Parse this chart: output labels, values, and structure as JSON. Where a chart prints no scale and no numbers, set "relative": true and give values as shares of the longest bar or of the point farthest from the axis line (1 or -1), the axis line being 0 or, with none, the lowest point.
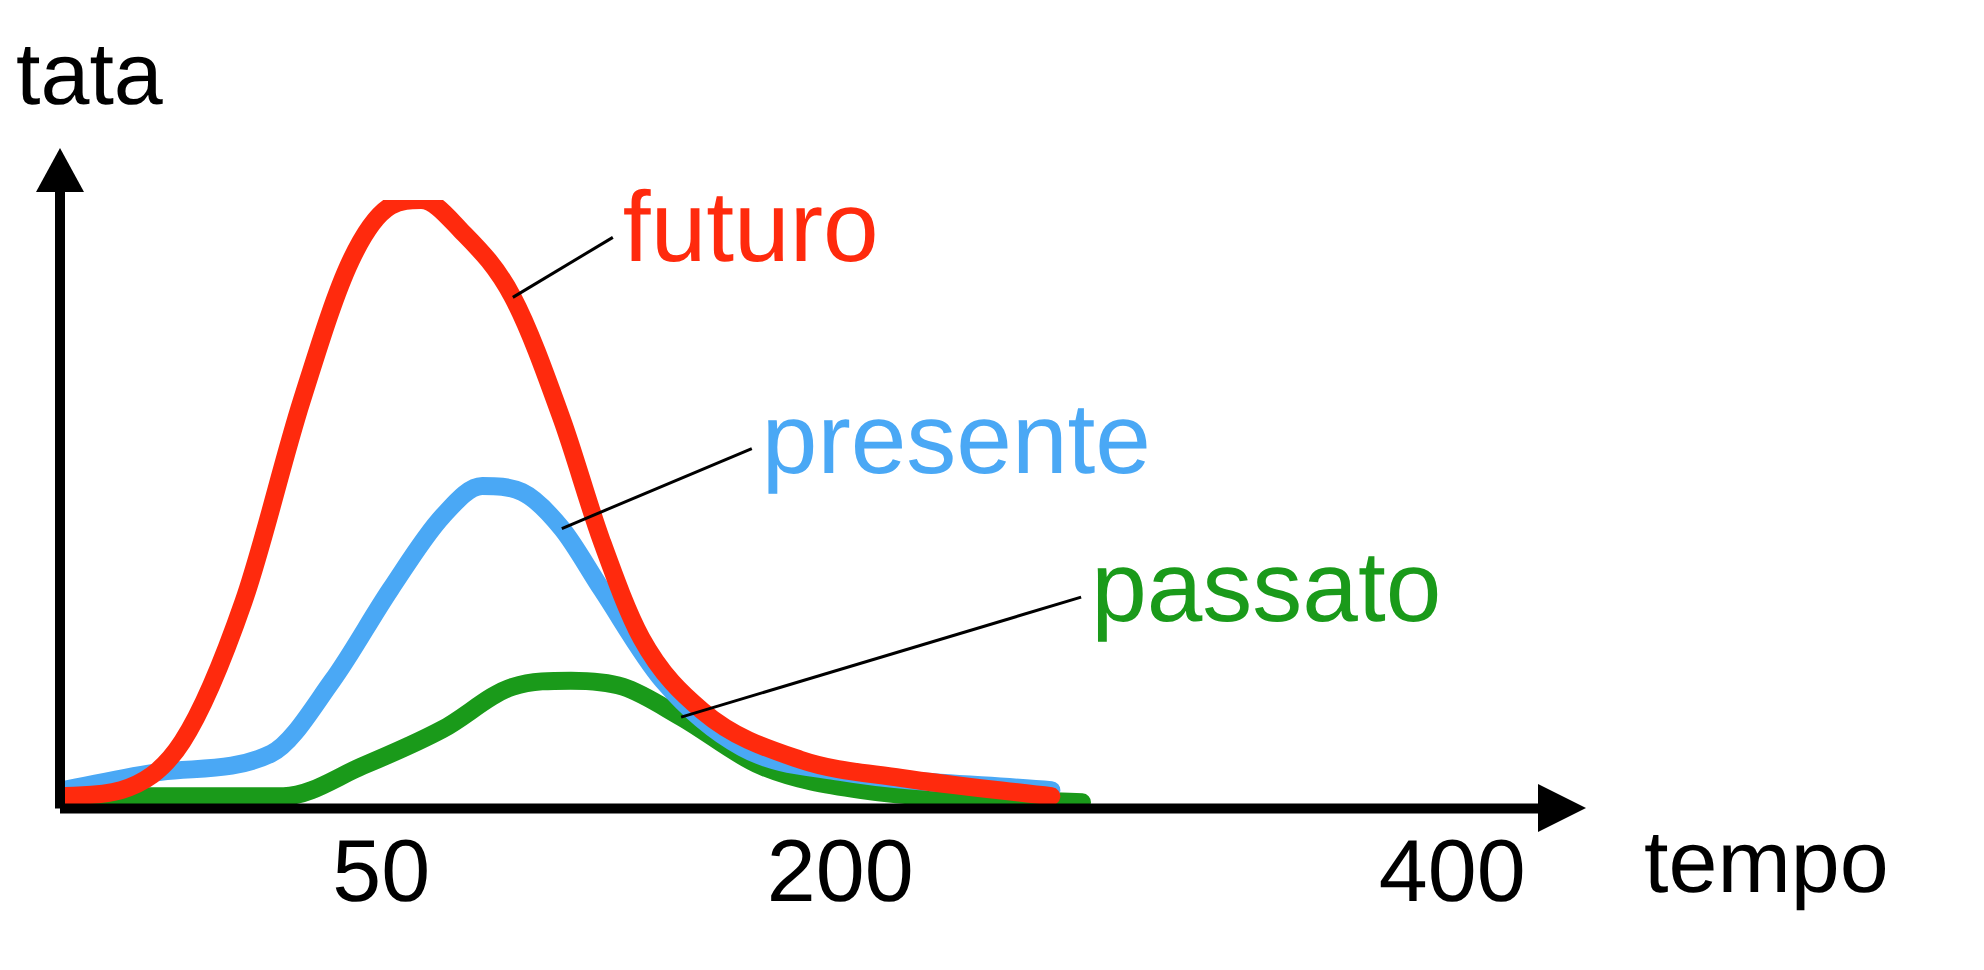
{
  "chart_data": {
    "type": "line",
    "xlabel": "tempo",
    "ylabel": "tata",
    "relative": true,
    "xlim": [
      -55,
      430
    ],
    "xticks": [
      50,
      200,
      400
    ],
    "marker": "none",
    "line_style": "solid",
    "legend": false,
    "grid": false,
    "series": [
      {
        "name": "futuro",
        "color": "#ff2a0d",
        "x": [
          -54,
          -35,
          -15,
          5,
          24,
          40,
          53,
          63,
          76,
          93,
          109,
          122,
          135,
          155,
          187,
          220,
          269
        ],
        "values": [
          0.02,
          0.03,
          0.11,
          0.34,
          0.67,
          0.9,
          0.99,
          1,
          0.95,
          0.84,
          0.64,
          0.44,
          0.28,
          0.16,
          0.08,
          0.05,
          0.02
        ]
      },
      {
        "name": "presente",
        "color": "#4aa8f5",
        "x": [
          -54,
          -22,
          14,
          34,
          53,
          70,
          83,
          96,
          109,
          122,
          142,
          168,
          200,
          269
        ],
        "values": [
          0.03,
          0.06,
          0.09,
          0.21,
          0.36,
          0.48,
          0.53,
          0.52,
          0.46,
          0.36,
          0.21,
          0.1,
          0.06,
          0.03
        ]
      },
      {
        "name": "passato",
        "color": "#1a9a1a",
        "x": [
          -54,
          18,
          44,
          70,
          93,
          112,
          129,
          148,
          174,
          207,
          279
        ],
        "values": [
          0.02,
          0.02,
          0.07,
          0.13,
          0.2,
          0.21,
          0.2,
          0.15,
          0.07,
          0.03,
          0.01
        ]
      }
    ]
  }
}
